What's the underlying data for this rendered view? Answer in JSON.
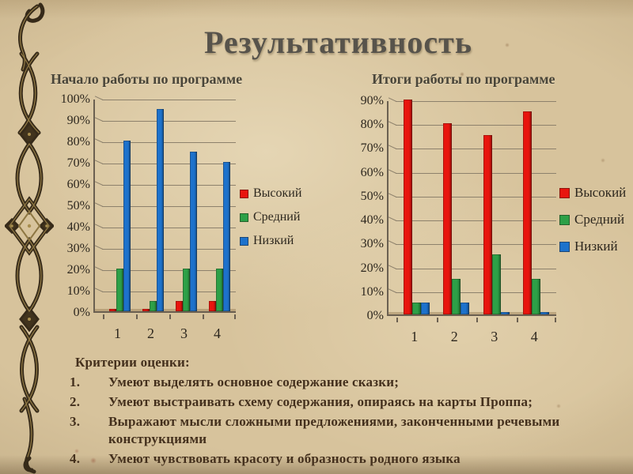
{
  "slide": {
    "title": "Результативность"
  },
  "criteria": {
    "heading": "Критерии оценки:",
    "items": [
      {
        "num": "1.",
        "text": "Умеют выделять основное содержание сказки;"
      },
      {
        "num": "2.",
        "text": "Умеют выстраивать схему содержания, опираясь на карты Проппа;"
      },
      {
        "num": "3.",
        "text": "Выражают мысли сложными предложениями, законченными речевыми конструкциями"
      },
      {
        "num": "4.",
        "text": "Умеют чувствовать красоту и образность родного языка"
      }
    ]
  },
  "colors": {
    "background_parchment": "#d7c39c",
    "title_text": "#57534b",
    "body_text": "#44301d",
    "axis_line": "#6b6051",
    "gridline": "#8d816c",
    "series_high_red": "#e8150e",
    "series_mid_green": "#2da047",
    "series_low_blue": "#1d72cc"
  },
  "chart_data": [
    {
      "type": "bar",
      "title": "Начало работы по программе",
      "categories": [
        "1",
        "2",
        "3",
        "4"
      ],
      "series": [
        {
          "name": "Высокий",
          "color": "#e8150e",
          "values": [
            1,
            1,
            5,
            5
          ]
        },
        {
          "name": "Средний",
          "color": "#2da047",
          "values": [
            20,
            5,
            20,
            20
          ]
        },
        {
          "name": "Низкий",
          "color": "#1d72cc",
          "values": [
            80,
            95,
            75,
            70
          ]
        }
      ],
      "xlabel": "",
      "ylabel": "",
      "ylim": [
        0,
        100
      ],
      "ytick_step": 10,
      "ytick_format": "percent",
      "grid": true,
      "legend_position": "right"
    },
    {
      "type": "bar",
      "title": "Итоги работы по программе",
      "categories": [
        "1",
        "2",
        "3",
        "4"
      ],
      "series": [
        {
          "name": "Высокий",
          "color": "#e8150e",
          "values": [
            90,
            80,
            75,
            85
          ]
        },
        {
          "name": "Средний",
          "color": "#2da047",
          "values": [
            5,
            15,
            25,
            15
          ]
        },
        {
          "name": "Низкий",
          "color": "#1d72cc",
          "values": [
            5,
            5,
            1,
            1
          ]
        }
      ],
      "xlabel": "",
      "ylabel": "",
      "ylim": [
        0,
        90
      ],
      "ytick_step": 10,
      "ytick_format": "percent",
      "grid": true,
      "legend_position": "right"
    }
  ]
}
